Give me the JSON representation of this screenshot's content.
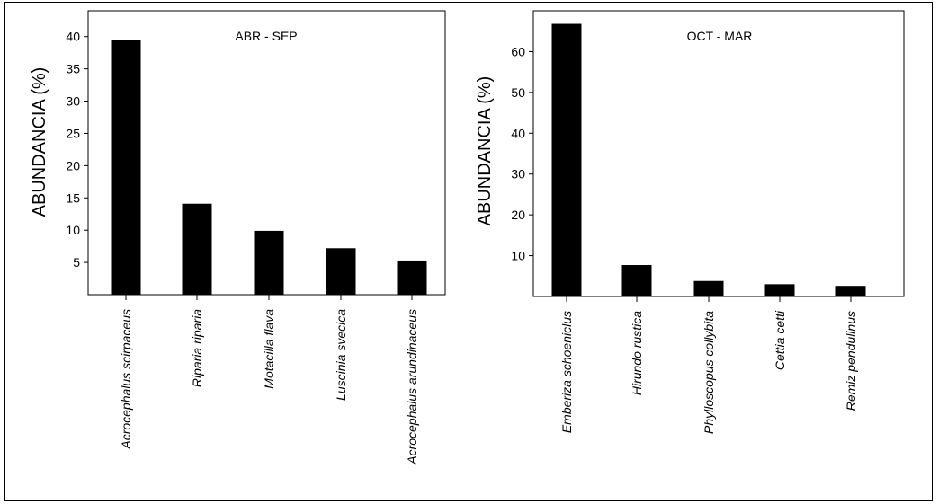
{
  "chart_data": [
    {
      "type": "bar",
      "title": "ABR - SEP",
      "ylabel": "ABUNDANCIA (%)",
      "categories": [
        "Acrocephalus scirpaceus",
        "Riparia riparia",
        "Motacilla flava",
        "Luscinia svecica",
        "Acrocephalus arundinaceus"
      ],
      "values": [
        39.5,
        14.1,
        9.9,
        7.2,
        5.3
      ],
      "yticks": [
        5,
        10,
        15,
        20,
        25,
        30,
        35,
        40
      ],
      "ylim": [
        0,
        44
      ],
      "color": "#000000"
    },
    {
      "type": "bar",
      "title": "OCT - MAR",
      "ylabel": "ABUNDANCIA (%)",
      "categories": [
        "Emberiza schoeniclus",
        "Hirundo rustica",
        "Phylloscopus collybita",
        "Cettia cetti",
        "Remiz pendulinus"
      ],
      "values": [
        66.8,
        7.7,
        3.8,
        3.0,
        2.6
      ],
      "yticks": [
        10,
        20,
        30,
        40,
        50,
        60
      ],
      "ylim": [
        0,
        70
      ],
      "color": "#000000"
    }
  ]
}
